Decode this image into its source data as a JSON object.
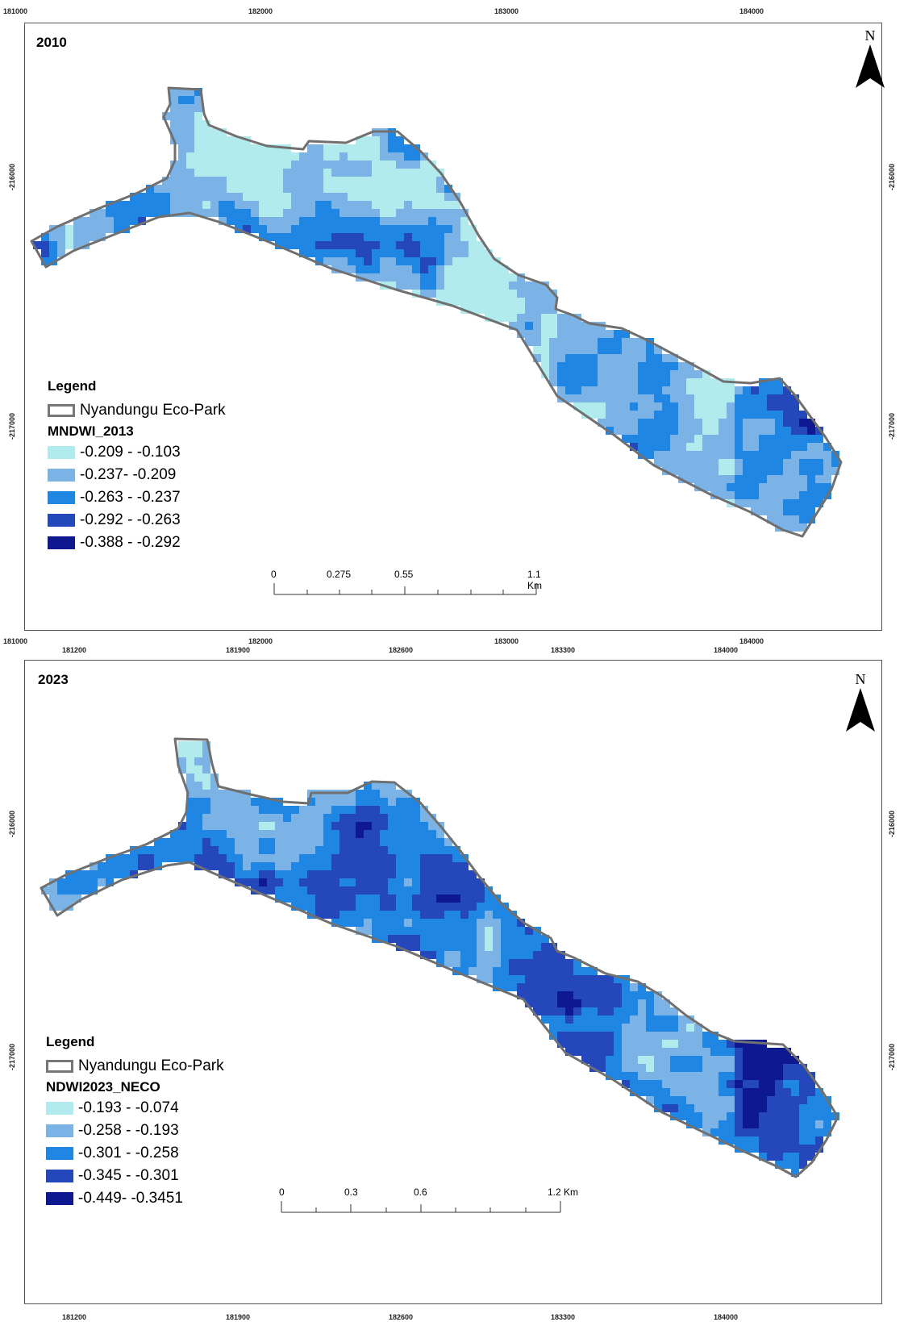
{
  "north_label": "N",
  "colors": {
    "class1": "#b2ebed",
    "class2": "#7cb3e6",
    "class3": "#1f86e3",
    "class4": "#2547bc",
    "class5": "#0d1891",
    "boundary": "#707070"
  },
  "maps": [
    {
      "year": "2010",
      "top_ticks": [
        "181000",
        "182000",
        "183000",
        "184000"
      ],
      "bottom_ticks": [
        "181000",
        "182000",
        "183000",
        "184000"
      ],
      "left_ticks": [
        "-216000",
        "-217000"
      ],
      "right_ticks": [
        "-216000",
        "-217000"
      ],
      "legend": {
        "title": "Legend",
        "boundary_label": "Nyandungu Eco-Park",
        "layer_name": "MNDWI_2013",
        "classes": [
          "-0.209 - -0.103",
          "-0.237- -0.209",
          "-0.263 - -0.237",
          "-0.292 - -0.263",
          "-0.388 - -0.292"
        ]
      },
      "scale_labels": [
        "0",
        "0.275",
        "0.55",
        "1.1 Km"
      ]
    },
    {
      "year": "2023",
      "top_ticks": [
        "181200",
        "181900",
        "182600",
        "183300",
        "184000"
      ],
      "bottom_ticks": [
        "181200",
        "181900",
        "182600",
        "183300",
        "184000"
      ],
      "left_ticks": [
        "-216000",
        "-217000"
      ],
      "right_ticks": [
        "-216000",
        "-217000"
      ],
      "legend": {
        "title": "Legend",
        "boundary_label": "Nyandungu Eco-Park",
        "layer_name": "NDWI2023_NECO",
        "classes": [
          "-0.193 - -0.074",
          "-0.258 - -0.193",
          "-0.301 - -0.258",
          "-0.345 - -0.301",
          "-0.449- -0.3451"
        ]
      },
      "scale_labels": [
        "0",
        "0.3",
        "0.6",
        "1.2 Km"
      ]
    }
  ]
}
